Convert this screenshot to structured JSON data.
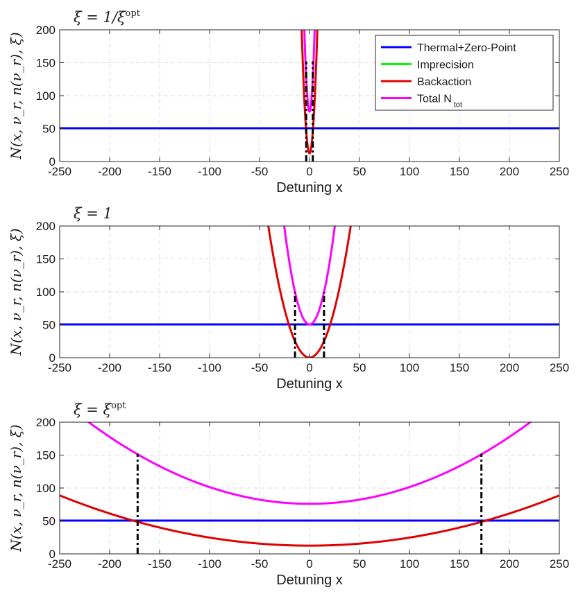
{
  "chart_data": [
    {
      "type": "line",
      "title": "ξ = 1/ξ^opt",
      "title_main": "ξ = 1/ξ",
      "title_sup": "opt",
      "xlabel": "Detuning x",
      "ylabel": "N(x, ν_r, n(ν_r), ξ)",
      "xlim": [
        -250,
        250
      ],
      "ylim": [
        0,
        200
      ],
      "xticks": [
        "-250",
        "-200",
        "-150",
        "-100",
        "-50",
        "0",
        "50",
        "100",
        "150",
        "200",
        "250"
      ],
      "yticks": [
        "0",
        "50",
        "100",
        "150",
        "200"
      ],
      "grid": true,
      "legend_position": "top-right",
      "series": [
        {
          "name": "Thermal+Zero-Point",
          "color": "#0000ff",
          "kind": "constant",
          "value": 50.5
        },
        {
          "name": "Imprecision",
          "color": "#00ff00",
          "kind": "parabola",
          "base": 0,
          "curvature": 0,
          "center": 0
        },
        {
          "name": "Backaction",
          "color": "#e00000",
          "kind": "parabola",
          "base": 12.5,
          "curvature": 3.05,
          "center": 0
        },
        {
          "name": "Total N_tot",
          "color": "#ff00ff",
          "kind": "parabola",
          "base": 76,
          "curvature": 4.65,
          "center": 0
        }
      ],
      "markers": [
        -3.3,
        3.3
      ],
      "marker_top": 152
    },
    {
      "type": "line",
      "title": "ξ = 1",
      "title_main": "ξ = 1",
      "title_sup": "",
      "xlabel": "Detuning x",
      "ylabel": "N(x, ν_r, n(ν_r), ξ)",
      "xlim": [
        -250,
        250
      ],
      "ylim": [
        0,
        200
      ],
      "xticks": [
        "-250",
        "-200",
        "-150",
        "-100",
        "-50",
        "0",
        "50",
        "100",
        "150",
        "200",
        "250"
      ],
      "yticks": [
        "0",
        "50",
        "100",
        "150",
        "200"
      ],
      "grid": true,
      "series": [
        {
          "name": "Thermal+Zero-Point",
          "color": "#0000ff",
          "kind": "constant",
          "value": 50.5
        },
        {
          "name": "Imprecision",
          "color": "#00ff00",
          "kind": "parabola",
          "base": 0,
          "curvature": 0,
          "center": 0
        },
        {
          "name": "Backaction",
          "color": "#e00000",
          "kind": "parabola",
          "base": 0.2,
          "curvature": 0.1175,
          "center": 0
        },
        {
          "name": "Total N_tot",
          "color": "#ff00ff",
          "kind": "parabola",
          "base": 50.5,
          "curvature": 0.233,
          "center": 0
        }
      ],
      "markers": [
        -14.5,
        14.5
      ],
      "marker_top": 100
    },
    {
      "type": "line",
      "title": "ξ = ξ^opt",
      "title_main": "ξ = ξ",
      "title_sup": "opt",
      "xlabel": "Detuning x",
      "ylabel": "N(x, ν_r, n(ν_r), ξ)",
      "xlim": [
        -250,
        250
      ],
      "ylim": [
        0,
        200
      ],
      "xticks": [
        "-250",
        "-200",
        "-150",
        "-100",
        "-50",
        "0",
        "50",
        "100",
        "150",
        "200",
        "250"
      ],
      "yticks": [
        "0",
        "50",
        "100",
        "150",
        "200"
      ],
      "grid": true,
      "series": [
        {
          "name": "Thermal+Zero-Point",
          "color": "#0000ff",
          "kind": "constant",
          "value": 50.5
        },
        {
          "name": "Imprecision",
          "color": "#00ff00",
          "kind": "parabola",
          "base": 0,
          "curvature": 0,
          "center": 0
        },
        {
          "name": "Backaction",
          "color": "#e00000",
          "kind": "parabola",
          "base": 12.5,
          "curvature": 0.00122,
          "center": 0
        },
        {
          "name": "Total N_tot",
          "color": "#ff00ff",
          "kind": "parabola",
          "base": 76,
          "curvature": 0.00254,
          "center": 0
        }
      ],
      "markers": [
        -172,
        172
      ],
      "marker_top": 152
    }
  ],
  "legend": {
    "items": [
      {
        "label": "Thermal+Zero-Point",
        "sub": "",
        "color": "#0000ff"
      },
      {
        "label": "Imprecision",
        "sub": "",
        "color": "#00ff00"
      },
      {
        "label": "Backaction",
        "sub": "",
        "color": "#e00000"
      },
      {
        "label": "Total N",
        "sub": "tot",
        "color": "#ff00ff"
      }
    ]
  }
}
